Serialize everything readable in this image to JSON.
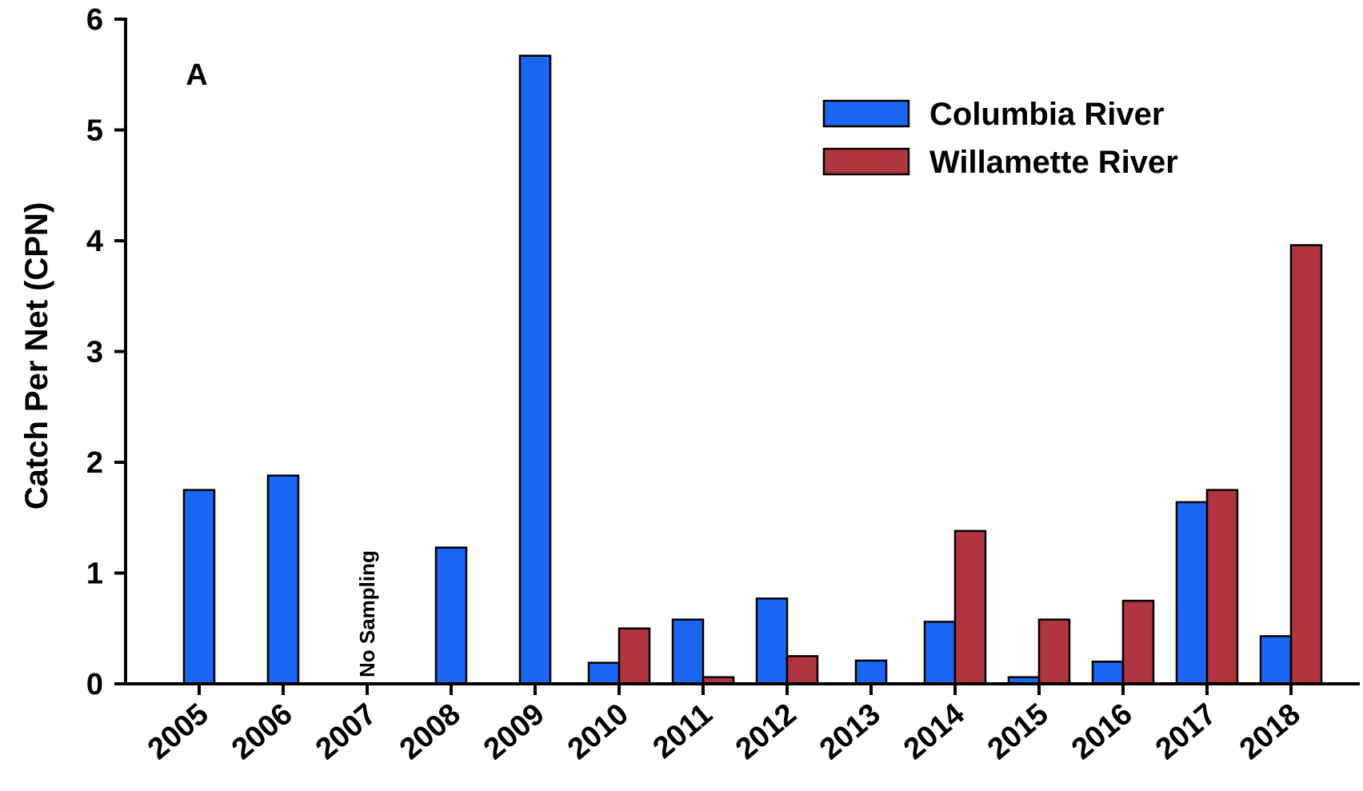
{
  "chart_data": {
    "type": "bar",
    "panel_label": "A",
    "title": "",
    "xlabel": "",
    "ylabel": "Catch Per Net (CPN)",
    "ylim": [
      0,
      6
    ],
    "yticks": [
      "0",
      "1",
      "2",
      "3",
      "4",
      "5",
      "6"
    ],
    "grid": false,
    "legend_position": "top-right",
    "categories": [
      "2005",
      "2006",
      "2007",
      "2008",
      "2009",
      "2010",
      "2011",
      "2012",
      "2013",
      "2014",
      "2015",
      "2016",
      "2017",
      "2018"
    ],
    "series": [
      {
        "name": "Columbia River",
        "color": "#1a66f5",
        "values": [
          1.75,
          1.88,
          null,
          1.23,
          5.67,
          0.19,
          0.58,
          0.77,
          0.21,
          0.56,
          0.06,
          0.2,
          1.64,
          0.43
        ]
      },
      {
        "name": "Willamette River",
        "color": "#b13441",
        "values": [
          null,
          null,
          null,
          null,
          null,
          0.5,
          0.06,
          0.25,
          null,
          1.38,
          0.58,
          0.75,
          1.75,
          3.96
        ]
      }
    ],
    "annotations": [
      {
        "category": "2007",
        "text": "No Sampling"
      }
    ]
  }
}
